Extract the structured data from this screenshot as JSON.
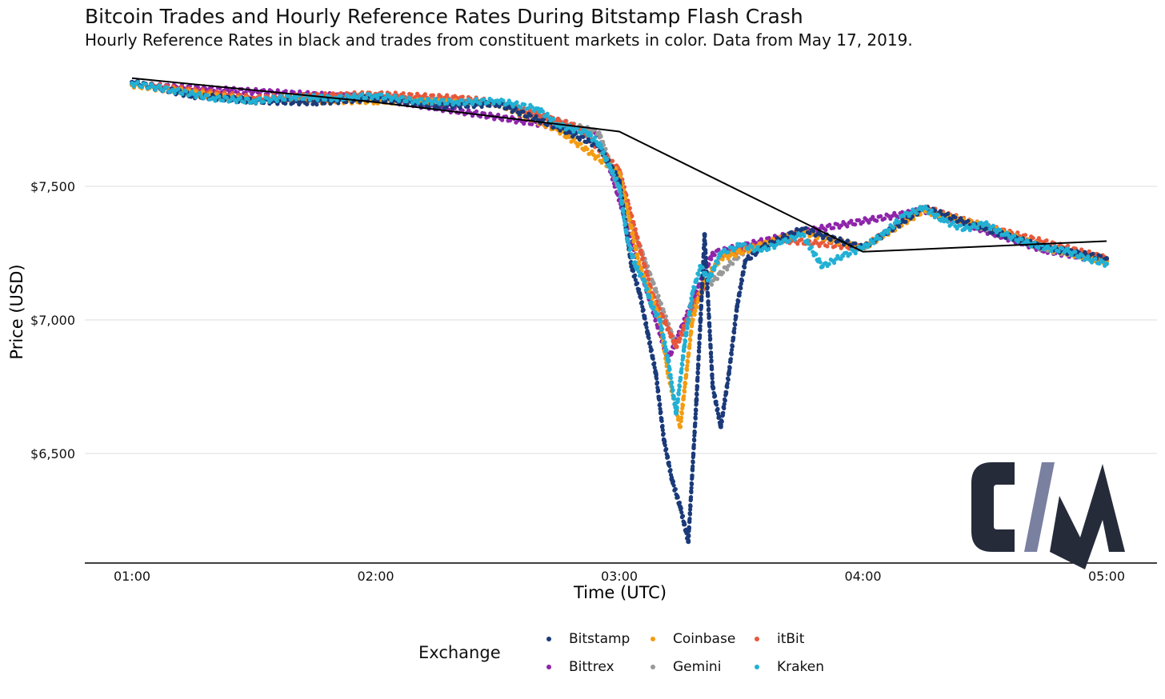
{
  "chart_data": {
    "type": "scatter",
    "title": "Bitcoin Trades and Hourly Reference Rates During Bitstamp Flash Crash",
    "subtitle": "Hourly Reference Rates in black and trades from constituent markets in color. Data from May 17, 2019.",
    "xlabel": "Time (UTC)",
    "ylabel": "Price (USD)",
    "x_ticks": [
      "01:00",
      "02:00",
      "03:00",
      "04:00",
      "05:00"
    ],
    "y_ticks": [
      6500,
      7000,
      7500
    ],
    "y_tick_labels": [
      "$6,500",
      "$7,000",
      "$7,500"
    ],
    "x_range": [
      "01:00",
      "05:00"
    ],
    "ylim": [
      6100,
      8000
    ],
    "grid": "horizontal",
    "legend_title": "Exchange",
    "legend_position": "bottom",
    "series": [
      {
        "name": "Bitstamp",
        "color": "#1B3A7A",
        "points": [
          [
            "01:00",
            7890
          ],
          [
            "01:15",
            7840
          ],
          [
            "01:30",
            7820
          ],
          [
            "01:45",
            7815
          ],
          [
            "02:00",
            7830
          ],
          [
            "02:15",
            7800
          ],
          [
            "02:30",
            7810
          ],
          [
            "02:45",
            7720
          ],
          [
            "02:55",
            7650
          ],
          [
            "03:00",
            7520
          ],
          [
            "03:03",
            7200
          ],
          [
            "03:05",
            7100
          ],
          [
            "03:07",
            6950
          ],
          [
            "03:09",
            6800
          ],
          [
            "03:11",
            6550
          ],
          [
            "03:13",
            6400
          ],
          [
            "03:15",
            6300
          ],
          [
            "03:17",
            6170
          ],
          [
            "03:19",
            6700
          ],
          [
            "03:20",
            7000
          ],
          [
            "03:21",
            7320
          ],
          [
            "03:23",
            6750
          ],
          [
            "03:25",
            6600
          ],
          [
            "03:27",
            6800
          ],
          [
            "03:29",
            7050
          ],
          [
            "03:31",
            7220
          ],
          [
            "03:35",
            7270
          ],
          [
            "03:45",
            7340
          ],
          [
            "04:00",
            7270
          ],
          [
            "04:15",
            7420
          ],
          [
            "04:30",
            7340
          ],
          [
            "04:45",
            7270
          ],
          [
            "05:00",
            7230
          ]
        ]
      },
      {
        "name": "Coinbase",
        "color": "#F39C12",
        "points": [
          [
            "01:00",
            7880
          ],
          [
            "01:30",
            7820
          ],
          [
            "02:00",
            7820
          ],
          [
            "02:30",
            7810
          ],
          [
            "02:45",
            7710
          ],
          [
            "03:00",
            7550
          ],
          [
            "03:05",
            7200
          ],
          [
            "03:10",
            7000
          ],
          [
            "03:12",
            6800
          ],
          [
            "03:15",
            6600
          ],
          [
            "03:18",
            7000
          ],
          [
            "03:21",
            7150
          ],
          [
            "03:25",
            7230
          ],
          [
            "03:35",
            7280
          ],
          [
            "03:45",
            7330
          ],
          [
            "04:00",
            7270
          ],
          [
            "04:15",
            7410
          ],
          [
            "04:30",
            7350
          ],
          [
            "04:45",
            7270
          ],
          [
            "05:00",
            7220
          ]
        ]
      },
      {
        "name": "itBit",
        "color": "#E8573B",
        "points": [
          [
            "01:00",
            7885
          ],
          [
            "01:30",
            7830
          ],
          [
            "01:50",
            7840
          ],
          [
            "02:00",
            7845
          ],
          [
            "02:20",
            7830
          ],
          [
            "02:30",
            7815
          ],
          [
            "02:50",
            7720
          ],
          [
            "03:00",
            7560
          ],
          [
            "03:08",
            7100
          ],
          [
            "03:14",
            6900
          ],
          [
            "03:18",
            7050
          ],
          [
            "03:25",
            7240
          ],
          [
            "03:40",
            7300
          ],
          [
            "04:00",
            7270
          ],
          [
            "04:15",
            7420
          ],
          [
            "04:30",
            7350
          ],
          [
            "05:00",
            7230
          ]
        ]
      },
      {
        "name": "Bittrex",
        "color": "#8E24AA",
        "points": [
          [
            "01:00",
            7880
          ],
          [
            "02:00",
            7830
          ],
          [
            "02:55",
            7700
          ],
          [
            "03:12",
            6850
          ],
          [
            "03:23",
            7250
          ],
          [
            "03:45",
            7330
          ],
          [
            "04:15",
            7410
          ],
          [
            "04:45",
            7260
          ],
          [
            "05:00",
            7220
          ]
        ]
      },
      {
        "name": "Gemini",
        "color": "#999999",
        "points": [
          [
            "01:00",
            7885
          ],
          [
            "01:30",
            7825
          ],
          [
            "02:00",
            7830
          ],
          [
            "02:30",
            7810
          ],
          [
            "02:55",
            7700
          ],
          [
            "03:08",
            7150
          ],
          [
            "03:14",
            6900
          ],
          [
            "03:20",
            7100
          ],
          [
            "03:30",
            7250
          ],
          [
            "03:45",
            7330
          ],
          [
            "04:00",
            7270
          ],
          [
            "04:15",
            7415
          ],
          [
            "04:30",
            7345
          ],
          [
            "04:45",
            7265
          ],
          [
            "05:00",
            7225
          ]
        ]
      },
      {
        "name": "Kraken",
        "color": "#22B0D4",
        "points": [
          [
            "01:00",
            7885
          ],
          [
            "01:10",
            7860
          ],
          [
            "01:20",
            7830
          ],
          [
            "01:30",
            7820
          ],
          [
            "01:40",
            7835
          ],
          [
            "01:50",
            7830
          ],
          [
            "02:00",
            7840
          ],
          [
            "02:10",
            7820
          ],
          [
            "02:20",
            7815
          ],
          [
            "02:30",
            7820
          ],
          [
            "02:40",
            7790
          ],
          [
            "02:45",
            7730
          ],
          [
            "02:52",
            7700
          ],
          [
            "02:55",
            7660
          ],
          [
            "02:58",
            7560
          ],
          [
            "03:00",
            7500
          ],
          [
            "03:02",
            7300
          ],
          [
            "03:04",
            7200
          ],
          [
            "03:06",
            7150
          ],
          [
            "03:08",
            7050
          ],
          [
            "03:10",
            7000
          ],
          [
            "03:12",
            6850
          ],
          [
            "03:14",
            6650
          ],
          [
            "03:16",
            6900
          ],
          [
            "03:18",
            7100
          ],
          [
            "03:20",
            7200
          ],
          [
            "03:22",
            7150
          ],
          [
            "03:25",
            7250
          ],
          [
            "03:30",
            7280
          ],
          [
            "03:35",
            7260
          ],
          [
            "03:40",
            7290
          ],
          [
            "03:45",
            7320
          ],
          [
            "03:50",
            7200
          ],
          [
            "03:55",
            7240
          ],
          [
            "04:00",
            7270
          ],
          [
            "04:05",
            7320
          ],
          [
            "04:10",
            7390
          ],
          [
            "04:15",
            7420
          ],
          [
            "04:20",
            7370
          ],
          [
            "04:25",
            7340
          ],
          [
            "04:30",
            7360
          ],
          [
            "04:35",
            7320
          ],
          [
            "04:40",
            7290
          ],
          [
            "04:45",
            7270
          ],
          [
            "04:50",
            7260
          ],
          [
            "04:55",
            7230
          ],
          [
            "05:00",
            7210
          ]
        ]
      }
    ],
    "reference_rates": {
      "name": "Hourly Reference Rate",
      "color": "#000000",
      "points": [
        [
          "01:00",
          7905
        ],
        [
          "02:00",
          7815
        ],
        [
          "03:00",
          7705
        ],
        [
          "04:00",
          7255
        ],
        [
          "05:00",
          7295
        ]
      ]
    }
  },
  "legend": {
    "title": "Exchange",
    "items": [
      {
        "label": "Bitstamp",
        "color": "#1B3A7A"
      },
      {
        "label": "Coinbase",
        "color": "#F39C12"
      },
      {
        "label": "itBit",
        "color": "#E8573B"
      },
      {
        "label": "Bittrex",
        "color": "#8E24AA"
      },
      {
        "label": "Gemini",
        "color": "#999999"
      },
      {
        "label": "Kraken",
        "color": "#22B0D4"
      }
    ]
  },
  "logo": {
    "text": "CM",
    "color_dark": "#262B3A",
    "color_accent": "#7A80A0"
  }
}
